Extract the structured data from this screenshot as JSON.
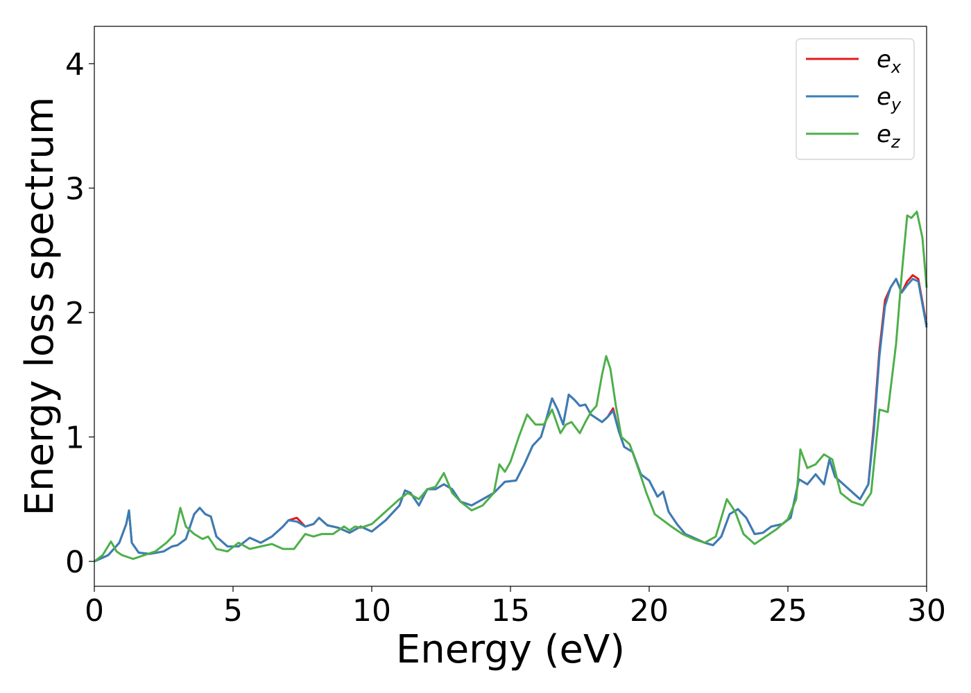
{
  "chart_data": {
    "type": "line",
    "title": "",
    "xlabel": "Energy (eV)",
    "ylabel": "Energy loss spectrum",
    "xlim": [
      0,
      30
    ],
    "ylim": [
      -0.2,
      4.3
    ],
    "xticks": [
      0,
      5,
      10,
      15,
      20,
      25,
      30
    ],
    "yticks": [
      0,
      1,
      2,
      3,
      4
    ],
    "grid": false,
    "legend_position": "top-right",
    "series": [
      {
        "name": "e",
        "subscript": "x",
        "color": "#e41a1c",
        "x": [
          0,
          0.5,
          0.9,
          1.15,
          1.25,
          1.35,
          1.6,
          2.0,
          2.5,
          2.8,
          3.0,
          3.3,
          3.6,
          3.8,
          4.0,
          4.2,
          4.4,
          4.8,
          5.2,
          5.6,
          6.0,
          6.4,
          6.8,
          7.0,
          7.3,
          7.6,
          7.9,
          8.1,
          8.4,
          8.8,
          9.2,
          9.6,
          10.0,
          10.5,
          11.0,
          11.2,
          11.4,
          11.7,
          12.0,
          12.3,
          12.6,
          12.9,
          13.2,
          13.6,
          14.0,
          14.4,
          14.8,
          15.2,
          15.5,
          15.8,
          16.1,
          16.3,
          16.5,
          16.7,
          16.9,
          17.1,
          17.3,
          17.5,
          17.7,
          17.9,
          18.1,
          18.3,
          18.5,
          18.7,
          18.9,
          19.1,
          19.4,
          19.7,
          20.0,
          20.3,
          20.5,
          20.7,
          21.0,
          21.3,
          21.7,
          22.0,
          22.3,
          22.6,
          22.9,
          23.2,
          23.5,
          23.8,
          24.1,
          24.4,
          24.8,
          25.1,
          25.4,
          25.7,
          26.0,
          26.3,
          26.5,
          26.7,
          27.0,
          27.3,
          27.6,
          27.9,
          28.1,
          28.3,
          28.5,
          28.7,
          28.9,
          29.1,
          29.3,
          29.5,
          29.7,
          30.0
        ],
        "values": [
          0.0,
          0.05,
          0.15,
          0.3,
          0.41,
          0.15,
          0.07,
          0.06,
          0.08,
          0.12,
          0.13,
          0.18,
          0.38,
          0.43,
          0.38,
          0.36,
          0.2,
          0.12,
          0.12,
          0.19,
          0.15,
          0.2,
          0.28,
          0.33,
          0.35,
          0.28,
          0.3,
          0.35,
          0.29,
          0.27,
          0.23,
          0.28,
          0.24,
          0.33,
          0.45,
          0.57,
          0.55,
          0.45,
          0.58,
          0.58,
          0.62,
          0.58,
          0.48,
          0.45,
          0.5,
          0.55,
          0.64,
          0.65,
          0.78,
          0.93,
          1.0,
          1.15,
          1.31,
          1.22,
          1.1,
          1.34,
          1.3,
          1.25,
          1.26,
          1.18,
          1.15,
          1.12,
          1.16,
          1.23,
          1.05,
          0.92,
          0.88,
          0.7,
          0.65,
          0.52,
          0.56,
          0.4,
          0.3,
          0.22,
          0.18,
          0.15,
          0.13,
          0.2,
          0.38,
          0.42,
          0.35,
          0.22,
          0.23,
          0.28,
          0.3,
          0.35,
          0.66,
          0.62,
          0.7,
          0.62,
          0.82,
          0.68,
          0.62,
          0.56,
          0.5,
          0.62,
          1.1,
          1.7,
          2.1,
          2.2,
          2.27,
          2.16,
          2.25,
          2.3,
          2.27,
          1.9
        ]
      },
      {
        "name": "e",
        "subscript": "y",
        "color": "#377eb8",
        "x": [
          0,
          0.5,
          0.9,
          1.15,
          1.25,
          1.35,
          1.6,
          2.0,
          2.5,
          2.8,
          3.0,
          3.3,
          3.6,
          3.8,
          4.0,
          4.2,
          4.4,
          4.8,
          5.2,
          5.6,
          6.0,
          6.4,
          6.8,
          7.0,
          7.3,
          7.6,
          7.9,
          8.1,
          8.4,
          8.8,
          9.2,
          9.6,
          10.0,
          10.5,
          11.0,
          11.2,
          11.4,
          11.7,
          12.0,
          12.3,
          12.6,
          12.9,
          13.2,
          13.6,
          14.0,
          14.4,
          14.8,
          15.2,
          15.5,
          15.8,
          16.1,
          16.3,
          16.5,
          16.7,
          16.9,
          17.1,
          17.3,
          17.5,
          17.7,
          17.9,
          18.1,
          18.3,
          18.5,
          18.7,
          18.9,
          19.1,
          19.4,
          19.7,
          20.0,
          20.3,
          20.5,
          20.7,
          21.0,
          21.3,
          21.7,
          22.0,
          22.3,
          22.6,
          22.9,
          23.2,
          23.5,
          23.8,
          24.1,
          24.4,
          24.8,
          25.1,
          25.4,
          25.7,
          26.0,
          26.3,
          26.5,
          26.7,
          27.0,
          27.3,
          27.6,
          27.9,
          28.1,
          28.3,
          28.5,
          28.7,
          28.9,
          29.1,
          29.3,
          29.5,
          29.7,
          30.0
        ],
        "values": [
          0.0,
          0.05,
          0.15,
          0.3,
          0.41,
          0.15,
          0.07,
          0.06,
          0.08,
          0.12,
          0.13,
          0.18,
          0.38,
          0.43,
          0.38,
          0.36,
          0.2,
          0.12,
          0.12,
          0.19,
          0.15,
          0.2,
          0.28,
          0.33,
          0.32,
          0.28,
          0.3,
          0.35,
          0.29,
          0.27,
          0.23,
          0.28,
          0.24,
          0.33,
          0.45,
          0.57,
          0.55,
          0.45,
          0.58,
          0.58,
          0.62,
          0.58,
          0.48,
          0.45,
          0.5,
          0.55,
          0.64,
          0.65,
          0.78,
          0.93,
          1.0,
          1.15,
          1.31,
          1.22,
          1.1,
          1.34,
          1.3,
          1.25,
          1.26,
          1.18,
          1.15,
          1.12,
          1.16,
          1.21,
          1.05,
          0.92,
          0.88,
          0.7,
          0.65,
          0.52,
          0.56,
          0.4,
          0.3,
          0.22,
          0.18,
          0.15,
          0.13,
          0.2,
          0.38,
          0.42,
          0.35,
          0.22,
          0.23,
          0.28,
          0.3,
          0.35,
          0.66,
          0.62,
          0.7,
          0.62,
          0.82,
          0.68,
          0.62,
          0.56,
          0.5,
          0.62,
          1.05,
          1.65,
          2.05,
          2.2,
          2.27,
          2.16,
          2.22,
          2.27,
          2.25,
          1.88
        ]
      },
      {
        "name": "e",
        "subscript": "z",
        "color": "#4daf4a",
        "x": [
          0,
          0.3,
          0.6,
          0.8,
          1.0,
          1.4,
          1.8,
          2.2,
          2.6,
          2.9,
          3.1,
          3.3,
          3.6,
          3.9,
          4.1,
          4.4,
          4.8,
          5.2,
          5.6,
          6.0,
          6.4,
          6.8,
          7.2,
          7.6,
          7.9,
          8.2,
          8.6,
          9.0,
          9.2,
          9.4,
          9.6,
          10.0,
          10.5,
          11.0,
          11.3,
          11.7,
          12.0,
          12.3,
          12.6,
          12.9,
          13.2,
          13.6,
          14.0,
          14.4,
          14.6,
          14.8,
          15.0,
          15.3,
          15.6,
          15.9,
          16.2,
          16.5,
          16.8,
          17.0,
          17.2,
          17.5,
          17.7,
          17.9,
          18.1,
          18.3,
          18.45,
          18.6,
          18.8,
          19.0,
          19.3,
          19.6,
          19.9,
          20.2,
          20.5,
          20.8,
          21.2,
          21.6,
          22.0,
          22.4,
          22.8,
          23.1,
          23.4,
          23.8,
          24.2,
          24.6,
          25.0,
          25.3,
          25.45,
          25.7,
          26.0,
          26.3,
          26.6,
          26.9,
          27.3,
          27.7,
          28.0,
          28.3,
          28.6,
          28.9,
          29.1,
          29.3,
          29.45,
          29.65,
          29.85,
          30.0
        ],
        "values": [
          0.0,
          0.05,
          0.16,
          0.08,
          0.05,
          0.02,
          0.05,
          0.08,
          0.15,
          0.22,
          0.43,
          0.28,
          0.22,
          0.18,
          0.2,
          0.1,
          0.08,
          0.15,
          0.1,
          0.12,
          0.14,
          0.1,
          0.1,
          0.22,
          0.2,
          0.22,
          0.22,
          0.28,
          0.25,
          0.28,
          0.27,
          0.3,
          0.4,
          0.5,
          0.55,
          0.5,
          0.58,
          0.6,
          0.71,
          0.55,
          0.48,
          0.41,
          0.45,
          0.55,
          0.78,
          0.72,
          0.8,
          1.0,
          1.18,
          1.1,
          1.1,
          1.22,
          1.03,
          1.1,
          1.12,
          1.03,
          1.12,
          1.2,
          1.25,
          1.5,
          1.65,
          1.55,
          1.25,
          1.0,
          0.94,
          0.75,
          0.55,
          0.38,
          0.33,
          0.28,
          0.22,
          0.18,
          0.15,
          0.2,
          0.5,
          0.4,
          0.22,
          0.14,
          0.2,
          0.26,
          0.34,
          0.5,
          0.9,
          0.75,
          0.78,
          0.86,
          0.82,
          0.55,
          0.48,
          0.45,
          0.55,
          1.22,
          1.2,
          1.75,
          2.3,
          2.78,
          2.76,
          2.81,
          2.6,
          2.2
        ]
      }
    ]
  }
}
